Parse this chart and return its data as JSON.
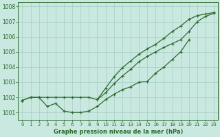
{
  "title": "Graphe pression niveau de la mer (hPa)",
  "x_hours": [
    0,
    1,
    2,
    3,
    4,
    5,
    6,
    7,
    8,
    9,
    10,
    11,
    12,
    13,
    14,
    15,
    16,
    17,
    18,
    19,
    20,
    21,
    22,
    23
  ],
  "line_dip": [
    1001.8,
    1002.0,
    1002.0,
    1001.4,
    1001.6,
    1001.1,
    1001.0,
    1001.0,
    1001.1,
    1001.4,
    1001.85,
    1002.2,
    1002.5,
    1002.7,
    1003.0,
    1003.05,
    1003.6,
    1004.0,
    1004.5,
    1005.0,
    1005.8,
    null,
    null,
    null
  ],
  "line_flat": [
    1001.8,
    1002.0,
    1002.0,
    1002.0,
    1002.0,
    1002.0,
    1002.0,
    1002.0,
    1002.0,
    1001.85,
    1002.3,
    1002.9,
    1003.4,
    1003.85,
    1004.35,
    1004.7,
    1005.0,
    1005.3,
    1005.55,
    1005.8,
    1006.35,
    1007.0,
    1007.35,
    1007.55
  ],
  "line_steep": [
    1001.8,
    null,
    null,
    null,
    null,
    null,
    null,
    null,
    null,
    1001.85,
    1002.6,
    1003.35,
    1003.95,
    1004.4,
    1004.85,
    1005.2,
    1005.5,
    1005.9,
    1006.35,
    1006.7,
    1007.15,
    1007.4,
    1007.5,
    1007.6
  ],
  "line_color": "#2d6b2d",
  "bg_color": "#c8e8e0",
  "grid_color": "#a8ccc4",
  "text_color": "#2d6b2d",
  "ylim": [
    1000.5,
    1008.3
  ],
  "yticks": [
    1001,
    1002,
    1003,
    1004,
    1005,
    1006,
    1007,
    1008
  ],
  "xlim": [
    -0.5,
    23.5
  ],
  "marker": "+"
}
